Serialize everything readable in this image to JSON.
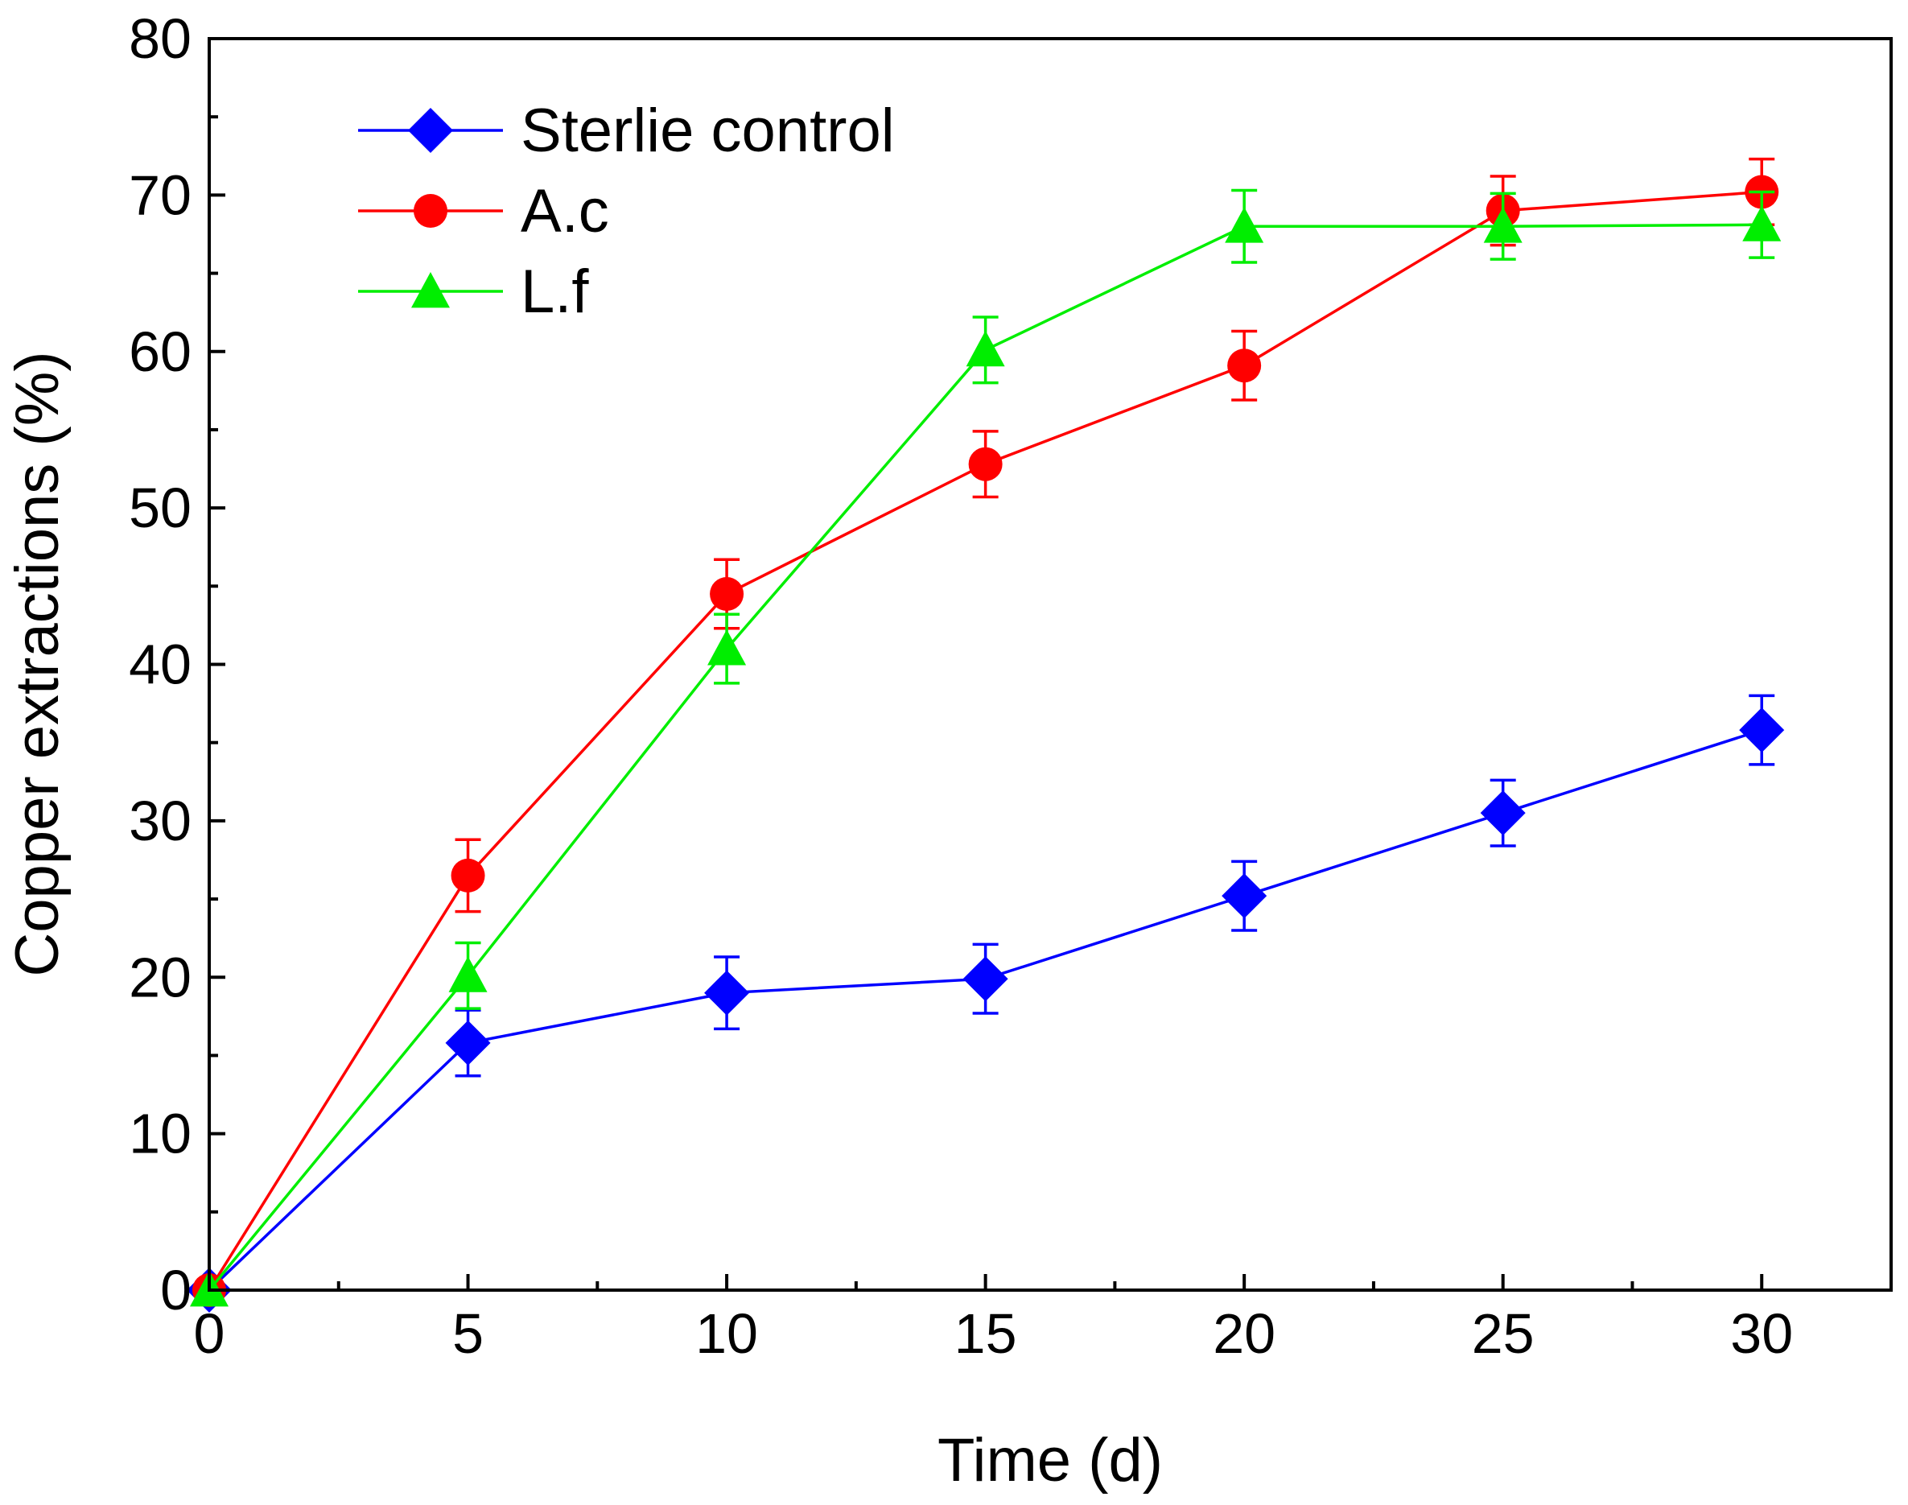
{
  "chart_data": {
    "type": "line",
    "xlabel": "Time (d)",
    "ylabel": "Copper extractions (%)",
    "xlim": [
      0,
      32.5
    ],
    "ylim": [
      0,
      80
    ],
    "x_ticks": [
      0,
      5,
      10,
      15,
      20,
      25,
      30
    ],
    "x_minor_ticks": [
      2.5,
      7.5,
      12.5,
      17.5,
      22.5,
      27.5,
      32.5
    ],
    "y_ticks": [
      0,
      10,
      20,
      30,
      40,
      50,
      60,
      70,
      80
    ],
    "y_minor_ticks": [
      5,
      15,
      25,
      35,
      45,
      55,
      65,
      75
    ],
    "grid": false,
    "legend_position": "top-left",
    "x": [
      0,
      5,
      10,
      15,
      20,
      25,
      30
    ],
    "series": [
      {
        "name": "Sterlie control",
        "color": "#0000ff",
        "marker": "diamond",
        "values": [
          0,
          15.8,
          19.0,
          19.9,
          25.2,
          30.5,
          35.8
        ],
        "errors": [
          0,
          2.1,
          2.3,
          2.2,
          2.2,
          2.1,
          2.2
        ]
      },
      {
        "name": "A.c",
        "color": "#ff0000",
        "marker": "circle",
        "values": [
          0,
          26.5,
          44.5,
          52.8,
          59.1,
          69.0,
          70.2
        ],
        "errors": [
          0,
          2.3,
          2.2,
          2.1,
          2.2,
          2.2,
          2.1
        ]
      },
      {
        "name": "L.f",
        "color": "#00ee00",
        "marker": "triangle",
        "values": [
          0,
          20.1,
          41.0,
          60.1,
          68.0,
          68.0,
          68.1
        ],
        "errors": [
          0,
          2.1,
          2.2,
          2.1,
          2.3,
          2.1,
          2.1
        ]
      }
    ]
  }
}
